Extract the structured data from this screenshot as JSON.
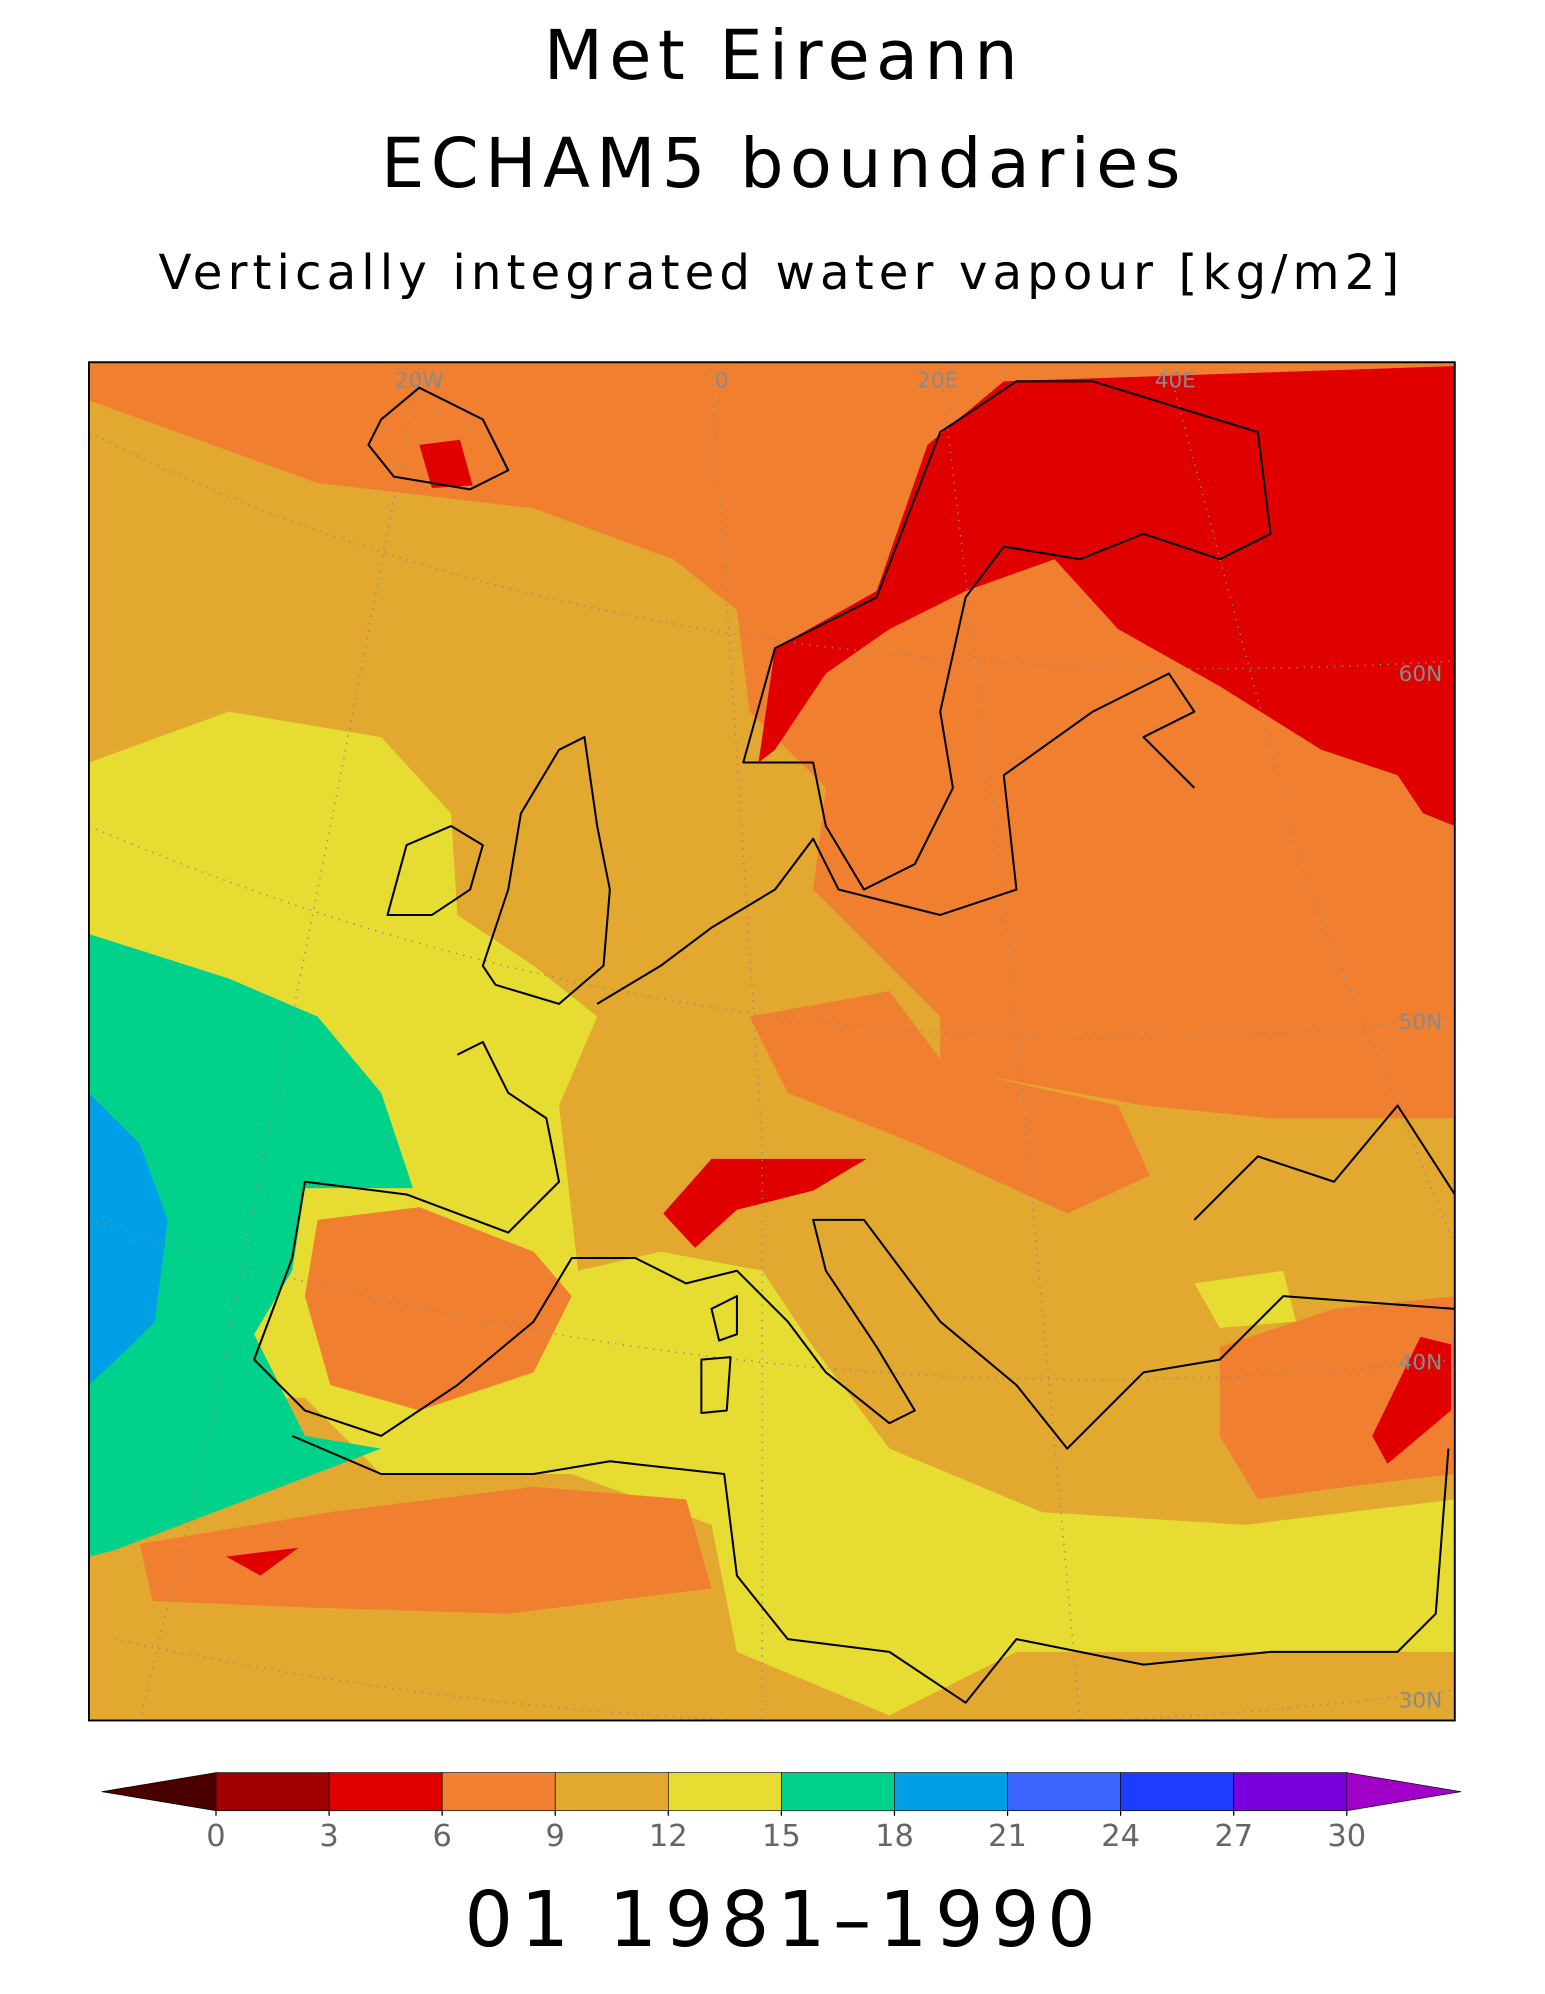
{
  "header": {
    "title": "Met Eireann",
    "subtitle": "ECHAM5 boundaries",
    "variable": "Vertically integrated water vapour [kg/m2]"
  },
  "map": {
    "lon_labels": [
      "20W",
      "0",
      "20E",
      "40E"
    ],
    "lat_labels": [
      "60N",
      "50N",
      "40N",
      "30N"
    ]
  },
  "colorbar": {
    "ticks": [
      0,
      3,
      6,
      9,
      12,
      15,
      18,
      21,
      24,
      27,
      30
    ],
    "colors": [
      "#4b0000",
      "#a00000",
      "#e00000",
      "#f08030",
      "#e2a830",
      "#e6dc32",
      "#00d28c",
      "#00a0e6",
      "#3c64ff",
      "#1e3cff",
      "#7800dc",
      "#a000c8"
    ]
  },
  "footer": "01 1981–1990"
}
